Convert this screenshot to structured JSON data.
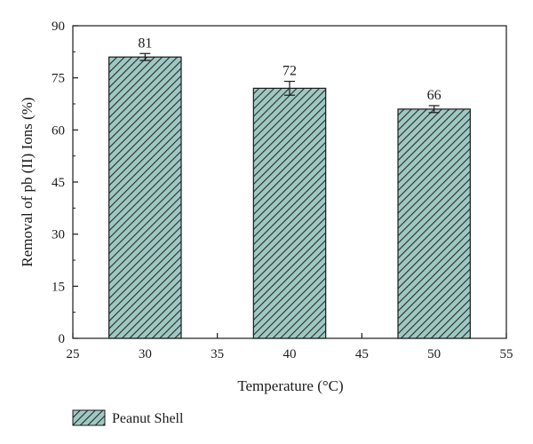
{
  "chart_data": {
    "type": "bar",
    "x": [
      30,
      40,
      50
    ],
    "series": [
      {
        "name": "Peanut Shell",
        "values": [
          81,
          72,
          66
        ],
        "errors": [
          1.0,
          2.0,
          1.0
        ],
        "data_labels": [
          "81",
          "72",
          "66"
        ]
      }
    ],
    "xlabel": "Temperature (°C)",
    "ylabel": "Removal of pb (II) Ions (%)",
    "xlim": [
      25,
      55
    ],
    "ylim": [
      0,
      90
    ],
    "xticks": [
      25,
      30,
      35,
      40,
      45,
      50,
      55
    ],
    "yticks": [
      0,
      15,
      30,
      45,
      60,
      75,
      90
    ],
    "grid": false,
    "bar_width": 5,
    "legend_position": "bottom-left",
    "colors": {
      "bar_fill": "#9ec9c3",
      "hatch": "#2a2a2a",
      "axis": "#1a1a1a"
    }
  }
}
